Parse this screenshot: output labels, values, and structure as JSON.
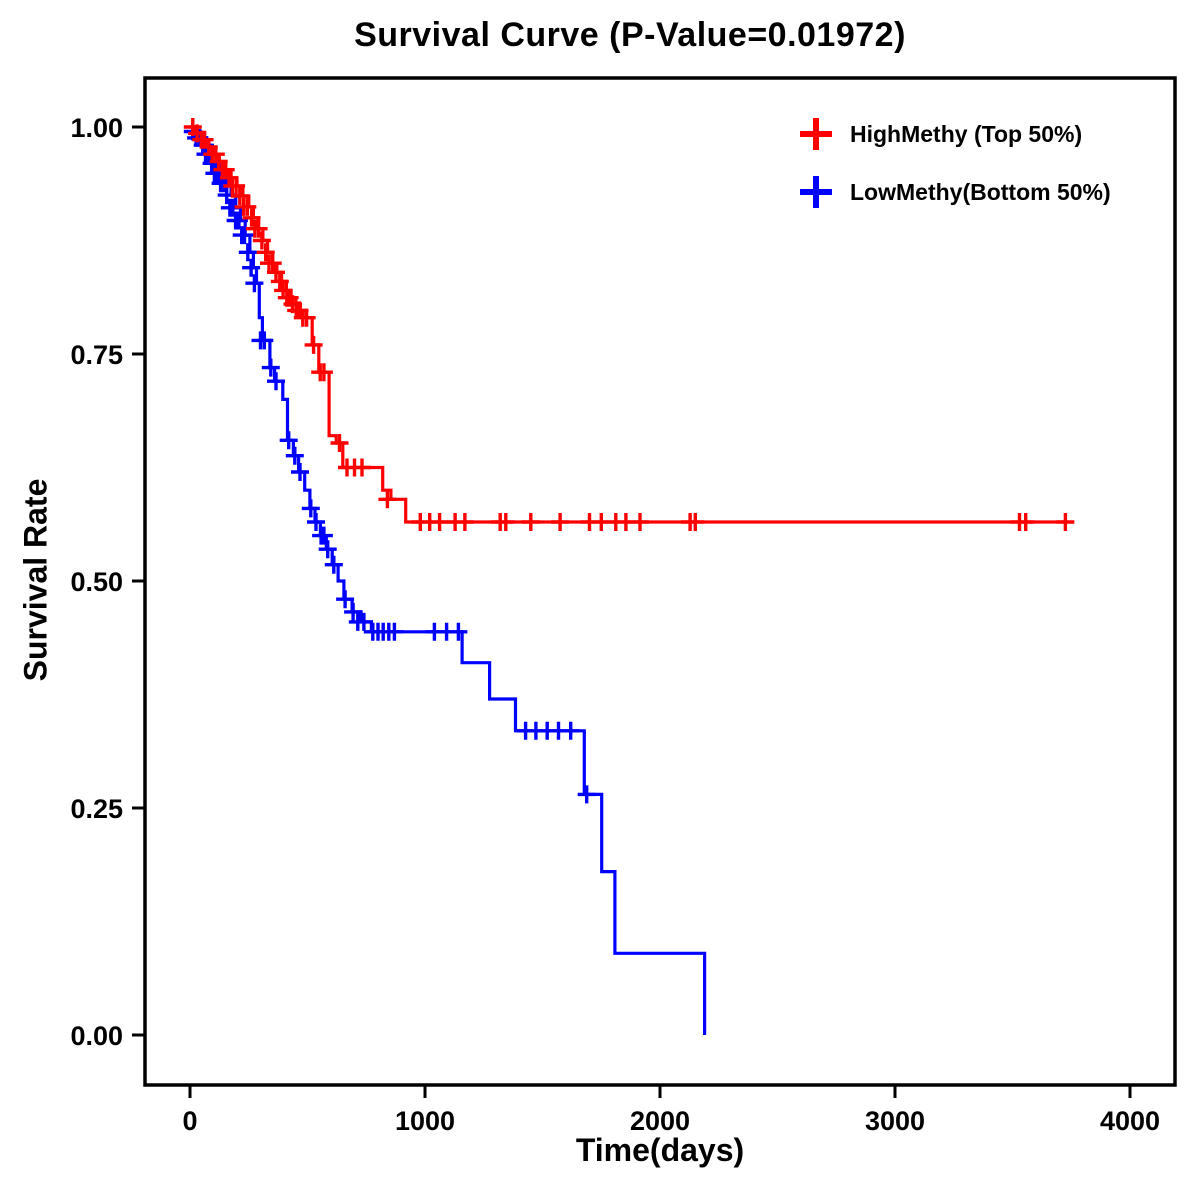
{
  "chart_data": {
    "type": "line",
    "subtype": "kaplan-meier-step-survival",
    "title": "Survival Curve (P-Value=0.01972)",
    "p_value": "0.01972",
    "xlabel": "Time(days)",
    "ylabel": "Survival Rate",
    "xlim": [
      -190,
      4190
    ],
    "ylim": [
      0,
      1.05
    ],
    "grid": false,
    "legend_position": "top-right",
    "xticks": [
      0,
      1000,
      2000,
      3000,
      4000
    ],
    "xtick_labels": [
      "0",
      "1000",
      "2000",
      "3000",
      "4000"
    ],
    "yticks": [
      0.0,
      0.25,
      0.5,
      0.75,
      1.0
    ],
    "ytick_labels": [
      "0.00",
      "0.25",
      "0.50",
      "0.75",
      "1.00"
    ],
    "series": [
      {
        "id": "highmethy",
        "name": "HighMethy (Top 50%)",
        "color": "#FF0000",
        "steps": [
          [
            0,
            1.0
          ],
          [
            25,
            0.993
          ],
          [
            50,
            0.986
          ],
          [
            75,
            0.978
          ],
          [
            100,
            0.97
          ],
          [
            125,
            0.962
          ],
          [
            150,
            0.953
          ],
          [
            175,
            0.944
          ],
          [
            200,
            0.935
          ],
          [
            225,
            0.924
          ],
          [
            250,
            0.912
          ],
          [
            270,
            0.9
          ],
          [
            290,
            0.888
          ],
          [
            310,
            0.875
          ],
          [
            330,
            0.862
          ],
          [
            350,
            0.85
          ],
          [
            370,
            0.84
          ],
          [
            390,
            0.83
          ],
          [
            410,
            0.82
          ],
          [
            430,
            0.812
          ],
          [
            450,
            0.805
          ],
          [
            470,
            0.798
          ],
          [
            495,
            0.79
          ],
          [
            520,
            0.76
          ],
          [
            548,
            0.73
          ],
          [
            592,
            0.66
          ],
          [
            622,
            0.652
          ],
          [
            650,
            0.625
          ],
          [
            820,
            0.6
          ],
          [
            855,
            0.59
          ],
          [
            918,
            0.565
          ],
          [
            3730,
            0.565
          ]
        ],
        "censors": [
          [
            12,
            1.0
          ],
          [
            30,
            0.993
          ],
          [
            48,
            0.986
          ],
          [
            62,
            0.986
          ],
          [
            80,
            0.978
          ],
          [
            95,
            0.97
          ],
          [
            110,
            0.97
          ],
          [
            122,
            0.962
          ],
          [
            138,
            0.953
          ],
          [
            152,
            0.953
          ],
          [
            166,
            0.944
          ],
          [
            180,
            0.935
          ],
          [
            196,
            0.935
          ],
          [
            212,
            0.924
          ],
          [
            228,
            0.912
          ],
          [
            244,
            0.912
          ],
          [
            262,
            0.9
          ],
          [
            276,
            0.888
          ],
          [
            292,
            0.888
          ],
          [
            306,
            0.875
          ],
          [
            322,
            0.862
          ],
          [
            336,
            0.85
          ],
          [
            352,
            0.85
          ],
          [
            366,
            0.84
          ],
          [
            382,
            0.83
          ],
          [
            396,
            0.82
          ],
          [
            412,
            0.812
          ],
          [
            424,
            0.812
          ],
          [
            436,
            0.805
          ],
          [
            452,
            0.798
          ],
          [
            466,
            0.798
          ],
          [
            480,
            0.79
          ],
          [
            496,
            0.79
          ],
          [
            526,
            0.76
          ],
          [
            554,
            0.73
          ],
          [
            570,
            0.73
          ],
          [
            636,
            0.652
          ],
          [
            668,
            0.625
          ],
          [
            700,
            0.625
          ],
          [
            732,
            0.625
          ],
          [
            840,
            0.59
          ],
          [
            980,
            0.565
          ],
          [
            1020,
            0.565
          ],
          [
            1062,
            0.565
          ],
          [
            1128,
            0.565
          ],
          [
            1170,
            0.565
          ],
          [
            1320,
            0.565
          ],
          [
            1344,
            0.565
          ],
          [
            1450,
            0.565
          ],
          [
            1575,
            0.565
          ],
          [
            1700,
            0.565
          ],
          [
            1750,
            0.565
          ],
          [
            1812,
            0.565
          ],
          [
            1855,
            0.565
          ],
          [
            1915,
            0.565
          ],
          [
            2128,
            0.565
          ],
          [
            2150,
            0.565
          ],
          [
            3530,
            0.565
          ],
          [
            3556,
            0.565
          ],
          [
            3725,
            0.565
          ]
        ]
      },
      {
        "id": "lowmethy",
        "name": "LowMethy(Bottom 50%)",
        "color": "#0000FF",
        "steps": [
          [
            0,
            1.0
          ],
          [
            20,
            0.995
          ],
          [
            45,
            0.988
          ],
          [
            70,
            0.98
          ],
          [
            95,
            0.97
          ],
          [
            115,
            0.96
          ],
          [
            135,
            0.949
          ],
          [
            155,
            0.938
          ],
          [
            175,
            0.925
          ],
          [
            195,
            0.911
          ],
          [
            215,
            0.897
          ],
          [
            235,
            0.881
          ],
          [
            255,
            0.862
          ],
          [
            270,
            0.845
          ],
          [
            283,
            0.828
          ],
          [
            295,
            0.79
          ],
          [
            308,
            0.765
          ],
          [
            340,
            0.735
          ],
          [
            360,
            0.72
          ],
          [
            395,
            0.7
          ],
          [
            415,
            0.655
          ],
          [
            440,
            0.638
          ],
          [
            462,
            0.62
          ],
          [
            488,
            0.6
          ],
          [
            510,
            0.58
          ],
          [
            532,
            0.565
          ],
          [
            555,
            0.55
          ],
          [
            580,
            0.535
          ],
          [
            605,
            0.518
          ],
          [
            630,
            0.5
          ],
          [
            655,
            0.48
          ],
          [
            690,
            0.466
          ],
          [
            728,
            0.455
          ],
          [
            772,
            0.444
          ],
          [
            1158,
            0.41
          ],
          [
            1275,
            0.37
          ],
          [
            1385,
            0.335
          ],
          [
            1678,
            0.265
          ],
          [
            1752,
            0.18
          ],
          [
            1808,
            0.09
          ],
          [
            2190,
            0.0
          ]
        ],
        "censors": [
          [
            12,
            0.995
          ],
          [
            26,
            0.988
          ],
          [
            40,
            0.988
          ],
          [
            54,
            0.98
          ],
          [
            66,
            0.97
          ],
          [
            80,
            0.97
          ],
          [
            92,
            0.96
          ],
          [
            104,
            0.949
          ],
          [
            118,
            0.949
          ],
          [
            130,
            0.938
          ],
          [
            144,
            0.938
          ],
          [
            156,
            0.925
          ],
          [
            170,
            0.911
          ],
          [
            182,
            0.911
          ],
          [
            194,
            0.897
          ],
          [
            208,
            0.897
          ],
          [
            220,
            0.881
          ],
          [
            232,
            0.881
          ],
          [
            246,
            0.862
          ],
          [
            260,
            0.845
          ],
          [
            274,
            0.828
          ],
          [
            300,
            0.765
          ],
          [
            316,
            0.765
          ],
          [
            344,
            0.735
          ],
          [
            366,
            0.72
          ],
          [
            420,
            0.655
          ],
          [
            446,
            0.638
          ],
          [
            468,
            0.62
          ],
          [
            514,
            0.58
          ],
          [
            536,
            0.565
          ],
          [
            558,
            0.55
          ],
          [
            570,
            0.55
          ],
          [
            586,
            0.535
          ],
          [
            612,
            0.518
          ],
          [
            660,
            0.48
          ],
          [
            694,
            0.466
          ],
          [
            714,
            0.455
          ],
          [
            740,
            0.455
          ],
          [
            778,
            0.444
          ],
          [
            800,
            0.444
          ],
          [
            822,
            0.444
          ],
          [
            846,
            0.444
          ],
          [
            870,
            0.444
          ],
          [
            1040,
            0.444
          ],
          [
            1092,
            0.444
          ],
          [
            1142,
            0.444
          ],
          [
            1428,
            0.335
          ],
          [
            1472,
            0.335
          ],
          [
            1520,
            0.335
          ],
          [
            1568,
            0.335
          ],
          [
            1620,
            0.335
          ],
          [
            1688,
            0.265
          ]
        ]
      }
    ]
  }
}
